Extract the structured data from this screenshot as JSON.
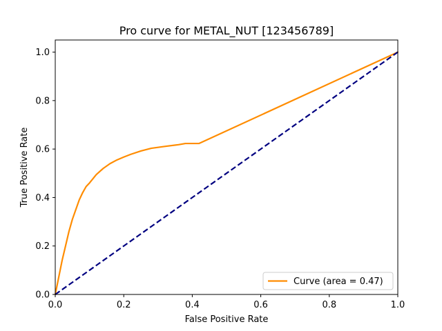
{
  "chart_data": {
    "type": "line",
    "title": "Pro curve for METAL_NUT [123456789]",
    "xlabel": "False Positive Rate",
    "ylabel": "True Positive Rate",
    "xlim": [
      0.0,
      1.0
    ],
    "ylim": [
      0.0,
      1.05
    ],
    "xticks": [
      "0.0",
      "0.2",
      "0.4",
      "0.6",
      "0.8",
      "1.0"
    ],
    "yticks": [
      "0.0",
      "0.2",
      "0.4",
      "0.6",
      "0.8",
      "1.0"
    ],
    "grid": false,
    "legend_position": "lower-right",
    "series": [
      {
        "name": "Curve (area = 0.47)",
        "color": "#ff8c00",
        "style": "solid",
        "x": [
          0.0,
          0.01,
          0.02,
          0.03,
          0.04,
          0.05,
          0.06,
          0.07,
          0.08,
          0.09,
          0.1,
          0.12,
          0.14,
          0.16,
          0.18,
          0.2,
          0.22,
          0.25,
          0.28,
          0.32,
          0.36,
          0.38,
          0.42,
          1.0
        ],
        "y": [
          0.0,
          0.07,
          0.14,
          0.2,
          0.26,
          0.31,
          0.35,
          0.39,
          0.42,
          0.445,
          0.46,
          0.495,
          0.52,
          0.54,
          0.555,
          0.567,
          0.578,
          0.592,
          0.603,
          0.611,
          0.618,
          0.623,
          0.623,
          1.0
        ]
      },
      {
        "color": "#000080",
        "style": "dashed",
        "x": [
          0.0,
          1.0
        ],
        "y": [
          0.0,
          1.0
        ]
      }
    ]
  }
}
